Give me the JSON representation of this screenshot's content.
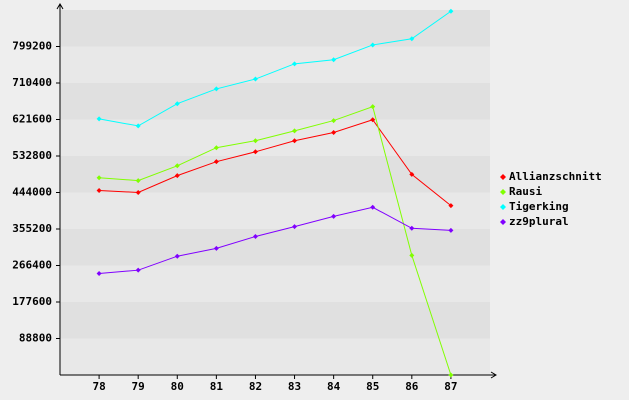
{
  "chart_data": {
    "type": "line",
    "x": [
      78,
      79,
      80,
      81,
      82,
      83,
      84,
      85,
      86,
      87
    ],
    "xlim": [
      77,
      88
    ],
    "xticks": [
      78,
      79,
      80,
      81,
      82,
      83,
      84,
      85,
      86,
      87
    ],
    "ylim": [
      0,
      888000
    ],
    "yticks": [
      88800,
      177600,
      266400,
      355200,
      444000,
      532800,
      621600,
      710400,
      799200
    ],
    "grid": true,
    "legend": "right",
    "series": [
      {
        "name": "Allianzschnitt",
        "color": "#ff0000",
        "values": [
          449000,
          444000,
          485000,
          519000,
          543000,
          570000,
          590000,
          621000,
          488000,
          412000
        ]
      },
      {
        "name": "Rausi",
        "color": "#80ff00",
        "values": [
          480000,
          473000,
          509000,
          553000,
          570000,
          594000,
          619000,
          653000,
          291000,
          0
        ]
      },
      {
        "name": "Tigerking",
        "color": "#00ffff",
        "values": [
          623000,
          606000,
          660000,
          696000,
          720000,
          757000,
          767000,
          803000,
          818000,
          885000
        ]
      },
      {
        "name": "zz9plural",
        "color": "#8000ff",
        "values": [
          247000,
          255000,
          289000,
          308000,
          337000,
          361000,
          386000,
          408000,
          357000,
          352000
        ]
      }
    ]
  }
}
